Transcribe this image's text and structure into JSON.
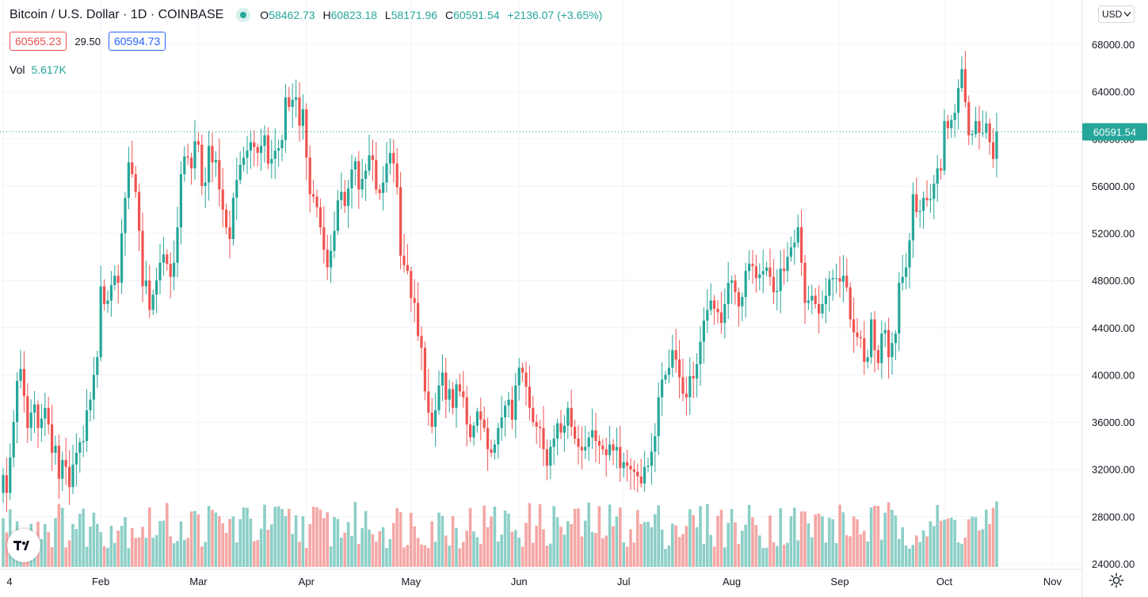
{
  "header": {
    "symbol_title": "Bitcoin / U.S. Dollar · 1D · COINBASE",
    "open_label": "O",
    "open": "58462.73",
    "high_label": "H",
    "high": "60823.18",
    "low_label": "L",
    "low": "58171.96",
    "close_label": "C",
    "close": "60591.54",
    "change": "+2136.07 (+3.65%)"
  },
  "quote": {
    "bid": "60565.23",
    "spread": "29.50",
    "ask": "60594.73"
  },
  "volume": {
    "label": "Vol",
    "value": "5.617K"
  },
  "currency": {
    "label": "USD"
  },
  "last_price_label": "60591.54",
  "colors": {
    "up": "#26a69a",
    "down": "#ef5350",
    "vol_up": "#8ccfc7",
    "vol_down": "#f4a7a5",
    "grid": "#f0f3fa",
    "text": "#131722",
    "last_price_bg": "#26a69a"
  },
  "icons": {
    "logo": "tradingview-logo-icon",
    "settings": "gear-icon",
    "dropdown": "chevron-down-icon"
  },
  "chart_data": {
    "type": "candlestick",
    "ylim": [
      24000,
      68000
    ],
    "yticks": [
      24000,
      28000,
      32000,
      36000,
      40000,
      44000,
      48000,
      52000,
      56000,
      60000,
      64000,
      68000
    ],
    "ytick_labels": [
      "24000.00",
      "28000.00",
      "32000.00",
      "36000.00",
      "40000.00",
      "44000.00",
      "48000.00",
      "52000.00",
      "56000.00",
      "60000.00",
      "64000.00",
      "68000.00"
    ],
    "x_ticks": [
      {
        "label": "4",
        "day": 0
      },
      {
        "label": "Feb",
        "day": 28
      },
      {
        "label": "Mar",
        "day": 56
      },
      {
        "label": "Apr",
        "day": 87
      },
      {
        "label": "May",
        "day": 117
      },
      {
        "label": "Jun",
        "day": 148
      },
      {
        "label": "Jul",
        "day": 178
      },
      {
        "label": "Aug",
        "day": 209
      },
      {
        "label": "Sep",
        "day": 240
      },
      {
        "label": "Oct",
        "day": 270
      },
      {
        "label": "Nov",
        "day": 301
      }
    ],
    "last_price": 60591.54,
    "closes": [
      31500,
      30000,
      33000,
      36000,
      39500,
      40500,
      38200,
      35500,
      36800,
      37500,
      35500,
      36300,
      37200,
      35800,
      33400,
      34000,
      31200,
      32800,
      32200,
      30500,
      32400,
      33400,
      34300,
      34400,
      37000,
      37900,
      40000,
      41500,
      47500,
      46000,
      46300,
      47600,
      48400,
      47800,
      52000,
      55000,
      58000,
      57000,
      55500,
      52200,
      47500,
      48000,
      45500,
      46800,
      48000,
      49500,
      50200,
      49400,
      48300,
      49500,
      52500,
      57000,
      58500,
      58400,
      57500,
      59800,
      59500,
      56000,
      56300,
      59400,
      58000,
      58200,
      55700,
      54000,
      52500,
      51500,
      55000,
      56500,
      57800,
      58400,
      59000,
      59700,
      59300,
      58800,
      59400,
      60300,
      57900,
      58300,
      59000,
      59200,
      59900,
      63500,
      62700,
      63300,
      63500,
      61100,
      62500,
      58400,
      55300,
      55100,
      54200,
      52500,
      50600,
      49100,
      50500,
      52200,
      54800,
      55500,
      54300,
      55800,
      57400,
      58100,
      55700,
      56600,
      57300,
      58600,
      58200,
      55700,
      55400,
      56300,
      57900,
      58800,
      57900,
      55900,
      50100,
      49300,
      48800,
      46500,
      46100,
      43300,
      42300,
      38600,
      36800,
      35600,
      37000,
      39100,
      40200,
      37900,
      38800,
      37200,
      39200,
      38600,
      38100,
      35800,
      34700,
      35700,
      36900,
      36200,
      35500,
      33700,
      33400,
      34100,
      35500,
      36400,
      37400,
      37900,
      36200,
      39100,
      40600,
      40200,
      39000,
      37200,
      36000,
      35600,
      35500,
      33700,
      32300,
      33900,
      34600,
      35900,
      35100,
      35700,
      37200,
      35600,
      34600,
      33900,
      33600,
      33900,
      34700,
      35300,
      34400,
      34000,
      33700,
      33200,
      34100,
      33600,
      33900,
      32100,
      32600,
      32300,
      32000,
      31800,
      31400,
      30800,
      32200,
      32300,
      33500,
      34800,
      38100,
      39600,
      40000,
      40600,
      42100,
      41300,
      39800,
      38400,
      38100,
      39900,
      39700,
      40900,
      42800,
      44600,
      45500,
      46300,
      45600,
      45300,
      44400,
      46000,
      47800,
      48000,
      47000,
      45800,
      46600,
      48800,
      49400,
      49200,
      48200,
      48500,
      48800,
      49100,
      48300,
      47000,
      47100,
      49000,
      48800,
      50000,
      50800,
      51200,
      52500,
      49500,
      46100,
      46300,
      46700,
      46000,
      45200,
      46000,
      46700,
      48100,
      48200,
      48200,
      47900,
      48400,
      47400,
      44700,
      43600,
      43200,
      43100,
      41100,
      41500,
      44700,
      42100,
      41000,
      43500,
      43800,
      41500,
      42700,
      43500,
      47800,
      48300,
      49100,
      51400,
      55300,
      53800,
      53900,
      55000,
      54800,
      54900,
      56200,
      57500,
      57300,
      61500,
      60900,
      61600,
      62200,
      64300,
      65900,
      63100,
      60300,
      60400,
      61500,
      60500,
      60500,
      61300,
      59700,
      58300,
      60591.54
    ],
    "volume_ylim": [
      0,
      10000
    ]
  }
}
